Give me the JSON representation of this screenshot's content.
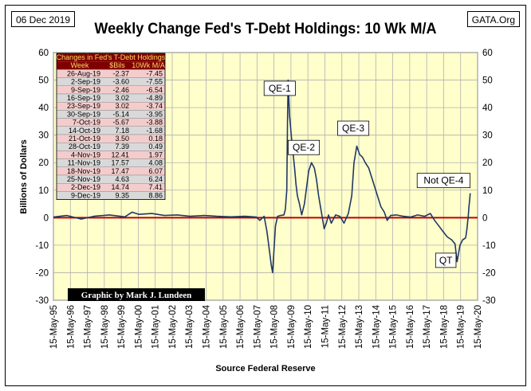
{
  "header": {
    "date": "06 Dec 2019",
    "source_site": "GATA.Org"
  },
  "credit": "Graphic by Mark J. Lundeen",
  "chart_data": {
    "type": "line",
    "title": "Weekly Change Fed's T-Debt Holdings: 10 Wk M/A",
    "xlabel": "Source Federal Reserve",
    "ylabel": "Billions of Dollars",
    "ylim": [
      -30,
      60
    ],
    "yticks": [
      -30,
      -20,
      -10,
      0,
      10,
      20,
      30,
      40,
      50,
      60
    ],
    "xlim": [
      "1995-05-15",
      "2020-05-15"
    ],
    "xticks": [
      "15-May-95",
      "15-May-96",
      "15-May-97",
      "15-May-98",
      "15-May-99",
      "15-May-00",
      "15-May-01",
      "15-May-02",
      "15-May-03",
      "15-May-04",
      "15-May-05",
      "15-May-06",
      "15-May-07",
      "15-May-08",
      "15-May-09",
      "15-May-10",
      "15-May-11",
      "15-May-12",
      "15-May-13",
      "15-May-14",
      "15-May-15",
      "15-May-16",
      "15-May-17",
      "15-May-18",
      "15-May-19",
      "15-May-20"
    ],
    "grid": true,
    "series": [
      {
        "color": "#1f3864",
        "x": [
          "1995-05-15",
          "1996-03-01",
          "1997-01-01",
          "1997-10-01",
          "1998-09-01",
          "1999-08-01",
          "2000-01-01",
          "2000-06-01",
          "2001-03-01",
          "2001-12-01",
          "2002-09-01",
          "2003-06-01",
          "2004-04-01",
          "2005-01-01",
          "2005-11-01",
          "2006-09-01",
          "2007-05-01",
          "2007-07-15",
          "2007-10-15",
          "2007-12-15",
          "2008-02-15",
          "2008-03-15",
          "2008-04-15",
          "2008-06-15",
          "2008-08-01",
          "2008-10-01",
          "2008-12-15",
          "2009-01-15",
          "2009-02-15",
          "2009-03-01",
          "2009-03-15",
          "2009-04-01",
          "2009-04-15",
          "2009-05-01",
          "2009-06-01",
          "2009-07-01",
          "2009-08-01",
          "2009-09-01",
          "2009-10-01",
          "2009-11-15",
          "2010-01-01",
          "2010-03-01",
          "2010-06-01",
          "2010-08-01",
          "2010-10-01",
          "2010-11-15",
          "2011-01-01",
          "2011-03-01",
          "2011-05-01",
          "2011-06-15",
          "2011-08-01",
          "2011-10-01",
          "2012-01-01",
          "2012-04-01",
          "2012-07-01",
          "2012-10-01",
          "2012-12-15",
          "2013-02-01",
          "2013-04-01",
          "2013-06-01",
          "2013-08-01",
          "2013-10-01",
          "2013-12-15",
          "2014-03-01",
          "2014-06-01",
          "2014-09-01",
          "2014-11-15",
          "2015-01-15",
          "2015-04-01",
          "2015-08-01",
          "2016-01-01",
          "2016-06-01",
          "2016-11-01",
          "2017-04-01",
          "2017-08-01",
          "2017-11-01",
          "2018-02-01",
          "2018-05-01",
          "2018-08-01",
          "2018-11-01",
          "2019-01-15",
          "2019-03-01",
          "2019-05-01",
          "2019-07-01",
          "2019-08-26",
          "2019-09-09",
          "2019-09-30",
          "2019-10-14",
          "2019-10-28",
          "2019-11-11",
          "2019-11-25",
          "2019-12-09"
        ],
        "y": [
          0.2,
          0.8,
          -0.5,
          0.5,
          1.0,
          0.3,
          2.0,
          1.2,
          1.5,
          0.8,
          1.0,
          0.5,
          0.8,
          0.5,
          0.3,
          0.5,
          0.2,
          -1.0,
          0.5,
          -5.0,
          -13.0,
          -17.0,
          -20.0,
          -3.0,
          0.5,
          0.8,
          1.0,
          3.0,
          10.0,
          35.0,
          50.0,
          42.0,
          37.0,
          34.0,
          28.0,
          23.0,
          18.0,
          12.0,
          8.0,
          5.0,
          1.0,
          5.0,
          17.0,
          20.0,
          18.0,
          14.0,
          8.0,
          2.0,
          -4.0,
          -2.0,
          1.0,
          -2.0,
          1.0,
          0.5,
          -2.0,
          1.5,
          8.0,
          20.0,
          26.0,
          23.0,
          22.0,
          20.0,
          18.0,
          14.0,
          9.0,
          4.0,
          2.0,
          -1.0,
          0.8,
          1.0,
          0.5,
          0.2,
          1.0,
          0.5,
          1.5,
          -1.0,
          -3.0,
          -5.0,
          -7.0,
          -8.0,
          -9.5,
          -16.0,
          -10.0,
          -8.0,
          -7.45,
          -6.54,
          -3.95,
          -1.68,
          0.49,
          4.08,
          6.24,
          8.86
        ]
      }
    ],
    "annotations": [
      {
        "text": "QE-1",
        "date": "2008-09-15",
        "value": 47
      },
      {
        "text": "QE-2",
        "date": "2010-02-15",
        "value": 25.5
      },
      {
        "text": "QE-3",
        "date": "2013-01-15",
        "value": 32.5
      },
      {
        "text": "Not QE-4",
        "date": "2018-05-15",
        "value": 13.5
      },
      {
        "text": "QT",
        "date": "2018-07-01",
        "value": -15.5
      }
    ],
    "zero_line_color": "#c00000",
    "line_color": "#1f3864",
    "table": {
      "title": "Changes in Fed's T-Debt Holdings",
      "columns": [
        "Week",
        "$Bils",
        "10Wk M/A"
      ],
      "rows": [
        [
          "26-Aug-19",
          "-2.37",
          "-7.45"
        ],
        [
          "2-Sep-19",
          "-3.60",
          "-7.55"
        ],
        [
          "9-Sep-19",
          "-2.46",
          "-6.54"
        ],
        [
          "16-Sep-19",
          "3.02",
          "-4.89"
        ],
        [
          "23-Sep-19",
          "3.02",
          "-3.74"
        ],
        [
          "30-Sep-19",
          "-5.14",
          "-3.95"
        ],
        [
          "7-Oct-19",
          "-5.67",
          "-3.88"
        ],
        [
          "14-Oct-19",
          "7.18",
          "-1.68"
        ],
        [
          "21-Oct-19",
          "3.50",
          "0.18"
        ],
        [
          "28-Oct-19",
          "7.39",
          "0.49"
        ],
        [
          "4-Nov-19",
          "12.41",
          "1.97"
        ],
        [
          "11-Nov-19",
          "17.57",
          "4.08"
        ],
        [
          "18-Nov-19",
          "17.47",
          "6.07"
        ],
        [
          "25-Nov-19",
          "4.63",
          "6.24"
        ],
        [
          "2-Dec-19",
          "14.74",
          "7.41"
        ],
        [
          "9-Dec-19",
          "9.35",
          "8.86"
        ]
      ],
      "row_colors": [
        "#f4cccc",
        "#d9d9d9"
      ],
      "header_color": "#7f0000",
      "header_text_color": "#ffd966"
    }
  }
}
